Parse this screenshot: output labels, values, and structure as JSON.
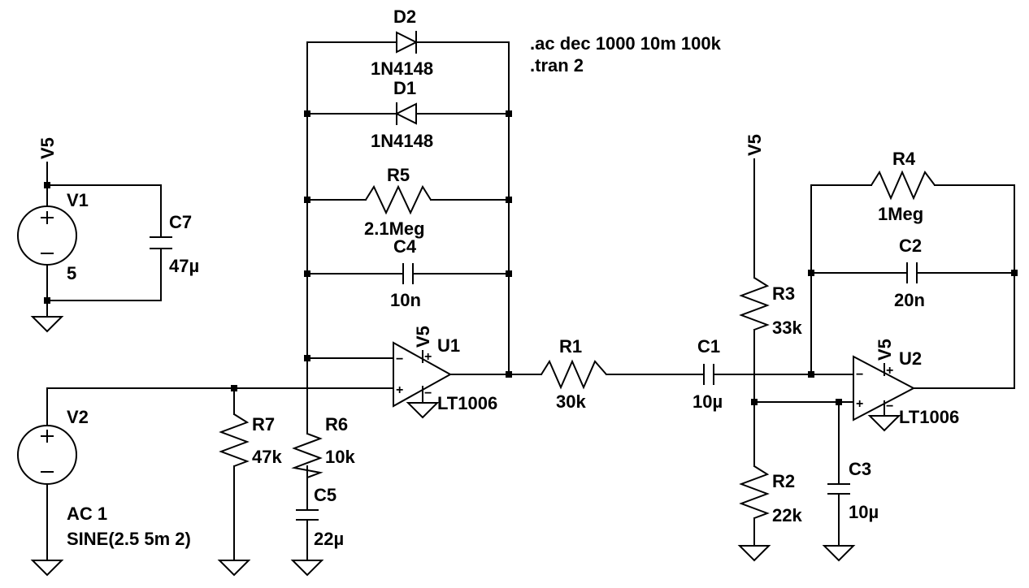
{
  "directives": {
    "ac": ".ac dec 1000 10m 100k",
    "tran": ".tran 2"
  },
  "components": {
    "d2": {
      "ref": "D2",
      "value": "1N4148"
    },
    "d1": {
      "ref": "D1",
      "value": "1N4148"
    },
    "r5": {
      "ref": "R5",
      "value": "2.1Meg"
    },
    "c4": {
      "ref": "C4",
      "value": "10n"
    },
    "u1": {
      "ref": "U1",
      "value": "LT1006"
    },
    "r1": {
      "ref": "R1",
      "value": "30k"
    },
    "c1": {
      "ref": "C1",
      "value": "10µ"
    },
    "r3": {
      "ref": "R3",
      "value": "33k"
    },
    "r2": {
      "ref": "R2",
      "value": "22k"
    },
    "c3": {
      "ref": "C3",
      "value": "10µ"
    },
    "r4": {
      "ref": "R4",
      "value": "1Meg"
    },
    "c2": {
      "ref": "C2",
      "value": "20n"
    },
    "u2": {
      "ref": "U2",
      "value": "LT1006"
    },
    "v1": {
      "ref": "V1",
      "value": "5"
    },
    "c7": {
      "ref": "C7",
      "value": "47µ"
    },
    "v2": {
      "ref": "V2",
      "value_ac": "AC 1",
      "value_sine": "SINE(2.5 5m 2)"
    },
    "r7": {
      "ref": "R7",
      "value": "47k"
    },
    "r6": {
      "ref": "R6",
      "value": "10k"
    },
    "c5": {
      "ref": "C5",
      "value": "22µ"
    }
  },
  "net_labels": {
    "v5": "V5"
  },
  "pin_symbols": {
    "minus": "−",
    "plus": "+"
  }
}
